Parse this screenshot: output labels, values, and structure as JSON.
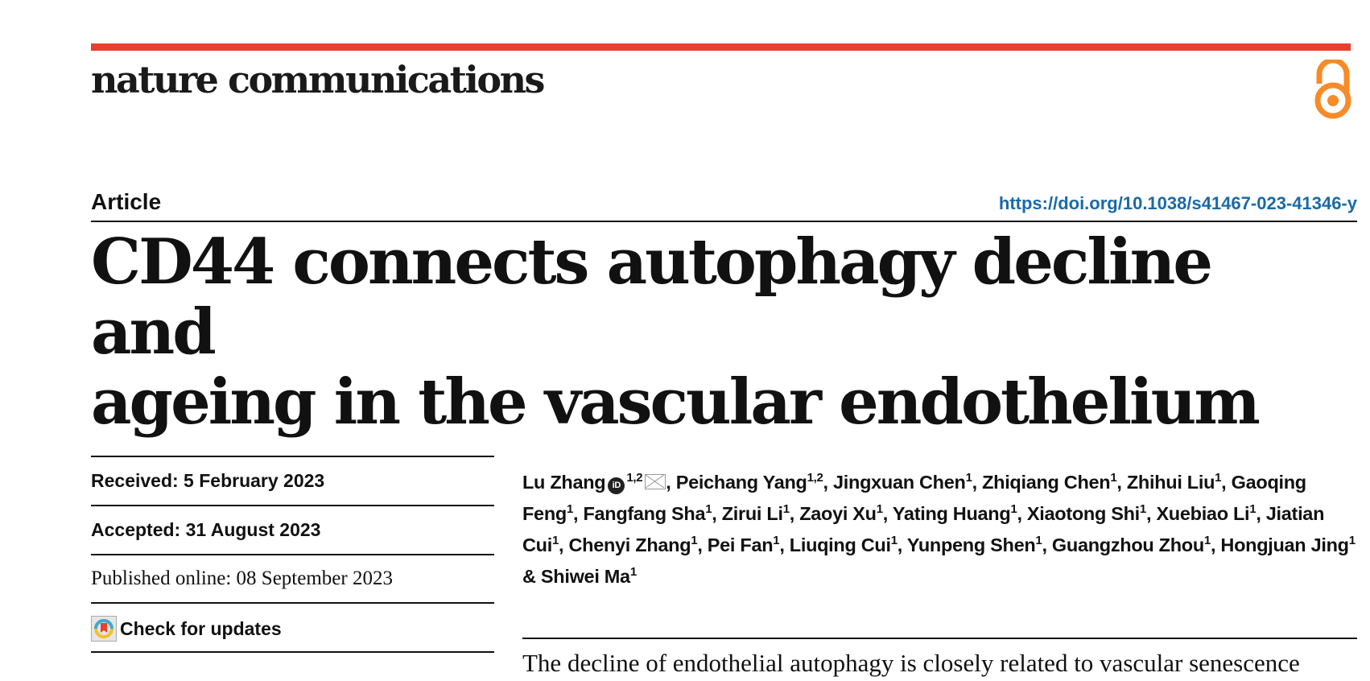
{
  "header": {
    "journal": "nature communications",
    "accent_color": "#e8402f",
    "open_access_icon": "open-access-lock-icon",
    "open_access_color": "#f68b28"
  },
  "article": {
    "type": "Article",
    "doi": "https://doi.org/10.1038/s41467-023-41346-y",
    "title_line1": "CD44 connects autophagy decline and",
    "title_line2": "ageing in the vascular endothelium",
    "received": "Received: 5 February 2023",
    "accepted": "Accepted: 31 August 2023",
    "published": "Published online: 08 September 2023",
    "check_updates": "Check for updates",
    "authors": [
      {
        "name": "Lu Zhang",
        "sup": "1,2",
        "orcid": true,
        "corresponding": true
      },
      {
        "name": "Peichang Yang",
        "sup": "1,2"
      },
      {
        "name": "Jingxuan Chen",
        "sup": "1"
      },
      {
        "name": "Zhiqiang Chen",
        "sup": "1"
      },
      {
        "name": "Zhihui Liu",
        "sup": "1"
      },
      {
        "name": "Gaoqing Feng",
        "sup": "1"
      },
      {
        "name": "Fangfang Sha",
        "sup": "1"
      },
      {
        "name": "Zirui Li",
        "sup": "1"
      },
      {
        "name": "Zaoyi Xu",
        "sup": "1"
      },
      {
        "name": "Yating Huang",
        "sup": "1"
      },
      {
        "name": "Xiaotong Shi",
        "sup": "1"
      },
      {
        "name": "Xuebiao Li",
        "sup": "1"
      },
      {
        "name": "Jiatian Cui",
        "sup": "1"
      },
      {
        "name": "Chenyi Zhang",
        "sup": "1"
      },
      {
        "name": "Pei Fan",
        "sup": "1"
      },
      {
        "name": "Liuqing Cui",
        "sup": "1"
      },
      {
        "name": "Yunpeng Shen",
        "sup": "1"
      },
      {
        "name": "Guangzhou Zhou",
        "sup": "1"
      },
      {
        "name": "Hongjuan Jing",
        "sup": "1"
      },
      {
        "name": "Shiwei Ma",
        "sup": "1"
      }
    ],
    "abstract_start": "The decline of endothelial autophagy is closely related to vascular senescence"
  }
}
